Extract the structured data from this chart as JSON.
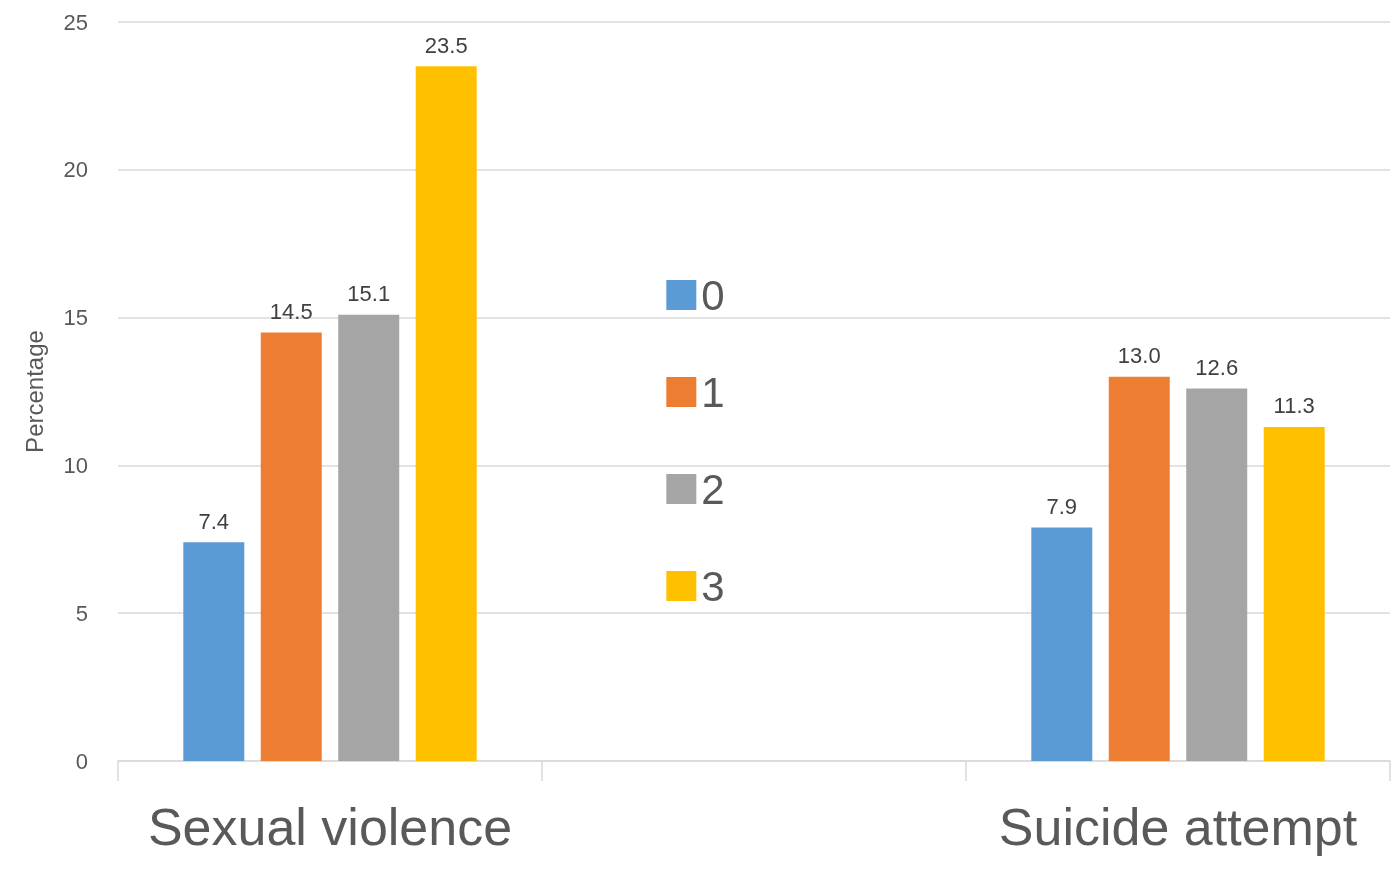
{
  "chart_data": {
    "type": "bar",
    "ylabel": "Percentage",
    "categories": [
      "Sexual violence",
      null,
      "Suicide attempt"
    ],
    "series": [
      {
        "name": "0",
        "color": "#5b9bd5",
        "values": [
          7.4,
          null,
          7.9
        ],
        "value_labels": [
          "7.4",
          null,
          "7.9"
        ]
      },
      {
        "name": "1",
        "color": "#ed7d31",
        "values": [
          14.5,
          null,
          13.0
        ],
        "value_labels": [
          "14.5",
          null,
          "13.0"
        ]
      },
      {
        "name": "2",
        "color": "#a5a5a5",
        "values": [
          15.1,
          null,
          12.6
        ],
        "value_labels": [
          "15.1",
          null,
          "12.6"
        ]
      },
      {
        "name": "3",
        "color": "#ffc000",
        "values": [
          23.5,
          null,
          11.3
        ],
        "value_labels": [
          "23.5",
          null,
          "11.3"
        ]
      }
    ],
    "ylim": [
      0,
      25
    ],
    "yticks": [
      0,
      5,
      10,
      15,
      20,
      25
    ],
    "grid": "y",
    "legend": "center"
  }
}
